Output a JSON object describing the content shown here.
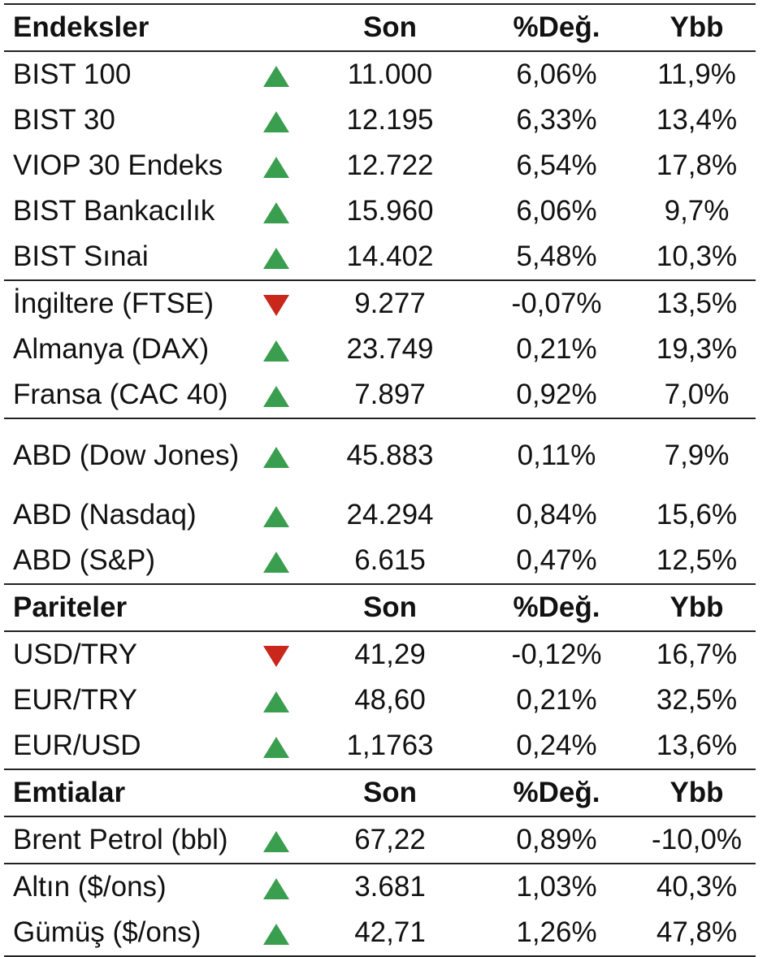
{
  "colors": {
    "up": "#3a9e4f",
    "down": "#c9261c",
    "rule": "#222222"
  },
  "sections": [
    {
      "id": "endeksler",
      "header": {
        "name": "Endeksler",
        "last": "Son",
        "chg": "%Değ.",
        "ytd": "Ybb"
      },
      "groups": [
        [
          {
            "name": "BIST 100",
            "dir": "up",
            "last": "11.000",
            "chg": "6,06%",
            "ytd": "11,9%"
          },
          {
            "name": "BIST 30",
            "dir": "up",
            "last": "12.195",
            "chg": "6,33%",
            "ytd": "13,4%"
          },
          {
            "name": "VIOP 30 Endeks",
            "dir": "up",
            "last": "12.722",
            "chg": "6,54%",
            "ytd": "17,8%"
          },
          {
            "name": "BIST Bankacılık",
            "dir": "up",
            "last": "15.960",
            "chg": "6,06%",
            "ytd": "9,7%"
          },
          {
            "name": "BIST Sınai",
            "dir": "up",
            "last": "14.402",
            "chg": "5,48%",
            "ytd": "10,3%"
          }
        ],
        [
          {
            "name": "İngiltere (FTSE)",
            "dir": "down",
            "last": "9.277",
            "chg": "-0,07%",
            "ytd": "13,5%"
          },
          {
            "name": "Almanya (DAX)",
            "dir": "up",
            "last": "23.749",
            "chg": "0,21%",
            "ytd": "19,3%"
          },
          {
            "name": "Fransa (CAC 40)",
            "dir": "up",
            "last": "7.897",
            "chg": "0,92%",
            "ytd": "7,0%"
          }
        ],
        [
          {
            "name": "ABD (Dow Jones)",
            "dir": "up",
            "last": "45.883",
            "chg": "0,11%",
            "ytd": "7,9%",
            "tall": true
          },
          {
            "name": "ABD (Nasdaq)",
            "dir": "up",
            "last": "24.294",
            "chg": "0,84%",
            "ytd": "15,6%"
          },
          {
            "name": "ABD (S&P)",
            "dir": "up",
            "last": "6.615",
            "chg": "0,47%",
            "ytd": "12,5%"
          }
        ]
      ]
    },
    {
      "id": "pariteler",
      "header": {
        "name": "Pariteler",
        "last": "Son",
        "chg": "%Değ.",
        "ytd": "Ybb"
      },
      "groups": [
        [
          {
            "name": "USD/TRY",
            "dir": "down",
            "last": "41,29",
            "chg": "-0,12%",
            "ytd": "16,7%"
          },
          {
            "name": "EUR/TRY",
            "dir": "up",
            "last": "48,60",
            "chg": "0,21%",
            "ytd": "32,5%"
          },
          {
            "name": "EUR/USD",
            "dir": "up",
            "last": "1,1763",
            "chg": "0,24%",
            "ytd": "13,6%"
          }
        ]
      ]
    },
    {
      "id": "emtialar",
      "header": {
        "name": "Emtialar",
        "last": "Son",
        "chg": "%Değ.",
        "ytd": "Ybb"
      },
      "groups": [
        [
          {
            "name": "Brent Petrol (bbl)",
            "dir": "up",
            "last": "67,22",
            "chg": "0,89%",
            "ytd": "-10,0%"
          }
        ],
        [
          {
            "name": "Altın ($/ons)",
            "dir": "up",
            "last": "3.681",
            "chg": "1,03%",
            "ytd": "40,3%"
          },
          {
            "name": "Gümüş ($/ons)",
            "dir": "up",
            "last": "42,71",
            "chg": "1,26%",
            "ytd": "47,8%"
          }
        ]
      ]
    }
  ]
}
